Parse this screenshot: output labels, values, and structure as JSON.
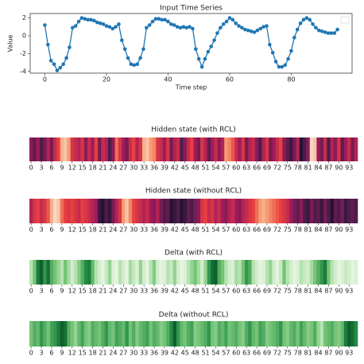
{
  "chart_data": [
    {
      "type": "line",
      "title": "Input Time Series",
      "xlabel": "Time step",
      "ylabel": "Value",
      "color": "#1f77b4",
      "x": [
        0,
        1,
        2,
        3,
        4,
        5,
        6,
        7,
        8,
        9,
        10,
        11,
        12,
        13,
        14,
        15,
        16,
        17,
        18,
        19,
        20,
        21,
        22,
        23,
        24,
        25,
        26,
        27,
        28,
        29,
        30,
        31,
        32,
        33,
        34,
        35,
        36,
        37,
        38,
        39,
        40,
        41,
        42,
        43,
        44,
        45,
        46,
        47,
        48,
        49,
        50,
        51,
        52,
        53,
        54,
        55,
        56,
        57,
        58,
        59,
        60,
        61,
        62,
        63,
        64,
        65,
        66,
        67,
        68,
        69,
        70,
        71,
        72,
        73,
        74,
        75,
        76,
        77,
        78,
        79,
        80,
        81,
        82,
        83,
        84,
        85,
        86,
        87,
        88,
        89,
        90,
        91,
        92,
        93,
        94,
        95
      ],
      "values": [
        1.2,
        -1,
        -2.8,
        -3.2,
        -3.9,
        -3.6,
        -3.2,
        -2.5,
        -1.3,
        0.9,
        1.1,
        1.6,
        2.0,
        1.9,
        1.8,
        1.8,
        1.7,
        1.5,
        1.4,
        1.3,
        1.1,
        1.0,
        0.8,
        1.0,
        1.3,
        -0.5,
        -1.5,
        -2.5,
        -3.2,
        -3.3,
        -3.2,
        -2.5,
        -1.5,
        0.9,
        1.2,
        1.6,
        1.9,
        1.9,
        1.8,
        1.8,
        1.6,
        1.3,
        1.2,
        1.0,
        0.9,
        1.0,
        0.9,
        1.0,
        0.8,
        -1.5,
        -2.6,
        -3.5,
        -2.6,
        -1.8,
        -1.2,
        -0.5,
        0.3,
        0.9,
        1.3,
        1.6,
        2.0,
        1.8,
        1.4,
        1.1,
        0.9,
        0.7,
        0.6,
        0.5,
        0.4,
        0.6,
        0.8,
        1.0,
        1.1,
        -1.0,
        -1.9,
        -2.9,
        -3.5,
        -3.5,
        -3.3,
        -2.6,
        -1.7,
        -0.2,
        0.7,
        1.4,
        1.8,
        2.0,
        1.8,
        1.3,
        0.9,
        0.6,
        0.5,
        0.4,
        0.3,
        0.3,
        0.3,
        0.7
      ],
      "xlim": [
        -4.75,
        99.75
      ],
      "xticks": [
        0,
        20,
        40,
        60,
        80
      ],
      "ylim": [
        -4.2,
        2.5
      ],
      "yticks": [
        -4,
        -2,
        0,
        2
      ],
      "legend": "upper right"
    },
    {
      "type": "heatmap",
      "title": "Hidden state (with RCL)",
      "colormap": [
        "#03051a",
        "#4c1d4b",
        "#a11a5b",
        "#e83f3f",
        "#f69c73",
        "#faebdd"
      ],
      "clim": [
        0,
        1
      ],
      "xlim": [
        -0.5,
        95.5
      ],
      "xticks": [
        0,
        3,
        6,
        9,
        12,
        15,
        18,
        21,
        24,
        27,
        30,
        33,
        36,
        39,
        42,
        45,
        48,
        51,
        54,
        57,
        60,
        63,
        66,
        69,
        72,
        75,
        78,
        81,
        84,
        87,
        90,
        93
      ],
      "values": [
        0.35,
        0.25,
        0.4,
        0.2,
        0.3,
        0.45,
        0.3,
        0.5,
        0.6,
        0.85,
        0.9,
        0.8,
        0.55,
        0.5,
        0.45,
        0.55,
        0.35,
        0.5,
        0.4,
        0.6,
        0.3,
        0.5,
        0.45,
        0.2,
        0.35,
        0.7,
        0.55,
        0.4,
        0.3,
        0.5,
        0.6,
        0.45,
        0.55,
        0.85,
        0.9,
        0.8,
        0.75,
        0.55,
        0.5,
        0.4,
        0.55,
        0.3,
        0.45,
        0.5,
        0.2,
        0.35,
        0.5,
        0.6,
        0.4,
        0.3,
        0.55,
        0.45,
        0.25,
        0.4,
        0.5,
        0.35,
        0.45,
        0.8,
        0.75,
        0.65,
        0.5,
        0.4,
        0.55,
        0.3,
        0.45,
        0.5,
        0.35,
        0.2,
        0.45,
        0.55,
        0.3,
        0.4,
        0.5,
        0.6,
        0.35,
        0.25,
        0.15,
        0.3,
        0.45,
        0.1,
        0.2,
        0.35,
        0.95,
        0.9,
        0.4,
        0.3,
        0.5,
        0.2,
        0.45,
        0.35,
        0.55,
        0.25,
        0.4,
        0.5,
        0.3,
        0.45
      ]
    },
    {
      "type": "heatmap",
      "title": "Hidden state (without RCL)",
      "colormap": [
        "#03051a",
        "#4c1d4b",
        "#a11a5b",
        "#e83f3f",
        "#f69c73",
        "#faebdd"
      ],
      "clim": [
        0,
        1
      ],
      "xlim": [
        -0.5,
        95.5
      ],
      "xticks": [
        0,
        3,
        6,
        9,
        12,
        15,
        18,
        21,
        24,
        27,
        30,
        33,
        36,
        39,
        42,
        45,
        48,
        51,
        54,
        57,
        60,
        63,
        66,
        69,
        72,
        75,
        78,
        81,
        84,
        87,
        90,
        93
      ],
      "values": [
        0.45,
        0.55,
        0.6,
        0.5,
        0.55,
        0.65,
        0.85,
        0.95,
        0.9,
        0.7,
        0.6,
        0.55,
        0.6,
        0.55,
        0.5,
        0.6,
        0.55,
        0.5,
        0.45,
        0.4,
        0.15,
        0.1,
        0.2,
        0.15,
        0.3,
        0.45,
        0.55,
        0.8,
        0.9,
        0.75,
        0.6,
        0.55,
        0.5,
        0.45,
        0.5,
        0.4,
        0.35,
        0.45,
        0.3,
        0.2,
        0.25,
        0.1,
        0.15,
        0.2,
        0.1,
        0.15,
        0.25,
        0.2,
        0.3,
        0.35,
        0.55,
        0.6,
        0.5,
        0.55,
        0.45,
        0.5,
        0.4,
        0.35,
        0.45,
        0.5,
        0.4,
        0.35,
        0.45,
        0.5,
        0.55,
        0.6,
        0.7,
        0.8,
        0.85,
        0.8,
        0.75,
        0.7,
        0.65,
        0.6,
        0.55,
        0.5,
        0.4,
        0.3,
        0.25,
        0.35,
        0.2,
        0.15,
        0.3,
        0.2,
        0.25,
        0.15,
        0.3,
        0.2,
        0.1,
        0.25,
        0.2,
        0.3,
        0.15,
        0.2,
        0.25,
        0.2
      ]
    },
    {
      "type": "heatmap",
      "title": "Delta (with RCL)",
      "colormap": [
        "#f7fcf5",
        "#c7e9c0",
        "#74c476",
        "#238b45",
        "#00441b"
      ],
      "clim": [
        0,
        1
      ],
      "xlim": [
        -0.5,
        95.5
      ],
      "xticks": [
        0,
        3,
        6,
        9,
        12,
        15,
        18,
        21,
        24,
        27,
        30,
        33,
        36,
        39,
        42,
        45,
        48,
        51,
        54,
        57,
        60,
        63,
        66,
        69,
        72,
        75,
        78,
        81,
        84,
        87,
        90,
        93
      ],
      "values": [
        0.3,
        0.5,
        0.8,
        0.9,
        0.7,
        0.85,
        0.6,
        0.5,
        0.4,
        0.3,
        0.5,
        0.35,
        0.2,
        0.3,
        0.45,
        0.6,
        0.75,
        0.8,
        0.55,
        0.3,
        0.2,
        0.1,
        0.25,
        0.4,
        0.15,
        0.1,
        0.3,
        0.2,
        0.1,
        0.35,
        0.25,
        0.15,
        0.4,
        0.2,
        0.1,
        0.3,
        0.45,
        0.2,
        0.1,
        0.15,
        0.3,
        0.25,
        0.4,
        0.2,
        0.1,
        0.15,
        0.3,
        0.4,
        0.5,
        0.35,
        0.2,
        0.4,
        0.7,
        0.85,
        0.9,
        0.6,
        0.5,
        0.3,
        0.2,
        0.15,
        0.35,
        0.3,
        0.5,
        0.7,
        0.6,
        0.3,
        0.2,
        0.1,
        0.15,
        0.3,
        0.4,
        0.2,
        0.1,
        0.25,
        0.5,
        0.3,
        0.2,
        0.1,
        0.15,
        0.3,
        0.25,
        0.2,
        0.35,
        0.5,
        0.6,
        0.7,
        0.8,
        0.5,
        0.3,
        0.2,
        0.1,
        0.15,
        0.25,
        0.2,
        0.1,
        0.15
      ]
    },
    {
      "type": "heatmap",
      "title": "Delta (without RCL)",
      "colormap": [
        "#f7fcf5",
        "#c7e9c0",
        "#74c476",
        "#238b45",
        "#00441b"
      ],
      "clim": [
        0,
        1
      ],
      "xlim": [
        -0.5,
        95.5
      ],
      "xticks": [
        0,
        3,
        6,
        9,
        12,
        15,
        18,
        21,
        24,
        27,
        30,
        33,
        36,
        39,
        42,
        45,
        48,
        51,
        54,
        57,
        60,
        63,
        66,
        69,
        72,
        75,
        78,
        81,
        84,
        87,
        90,
        93
      ],
      "values": [
        0.5,
        0.6,
        0.55,
        0.7,
        0.6,
        0.5,
        0.65,
        0.7,
        0.8,
        0.9,
        0.85,
        0.6,
        0.5,
        0.4,
        0.55,
        0.65,
        0.5,
        0.45,
        0.6,
        0.55,
        0.5,
        0.6,
        0.7,
        0.55,
        0.5,
        0.65,
        0.6,
        0.55,
        0.7,
        0.5,
        0.6,
        0.45,
        0.55,
        0.6,
        0.65,
        0.5,
        0.6,
        0.55,
        0.45,
        0.5,
        0.6,
        0.75,
        0.9,
        0.7,
        0.55,
        0.5,
        0.6,
        0.65,
        0.45,
        0.5,
        0.55,
        0.6,
        0.7,
        0.5,
        0.45,
        0.6,
        0.55,
        0.65,
        0.5,
        0.55,
        0.6,
        0.5,
        0.45,
        0.6,
        0.7,
        0.55,
        0.5,
        0.65,
        0.6,
        0.45,
        0.5,
        0.55,
        0.6,
        0.7,
        0.5,
        0.45,
        0.55,
        0.6,
        0.5,
        0.65,
        0.55,
        0.45,
        0.5,
        0.6,
        0.4,
        0.3,
        0.5,
        0.55,
        0.6,
        0.5,
        0.45,
        0.55,
        0.8,
        0.9,
        0.85,
        0.75
      ]
    }
  ]
}
